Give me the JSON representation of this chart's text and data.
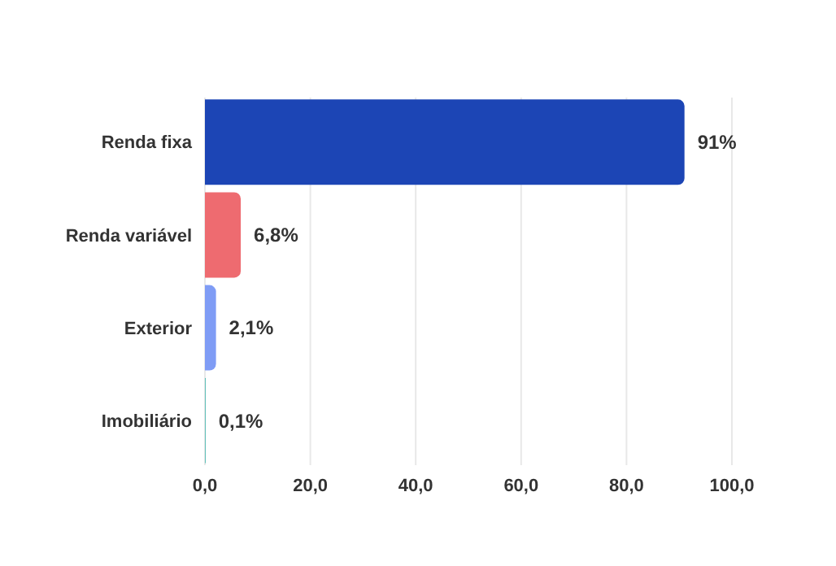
{
  "chart_data": {
    "type": "bar",
    "orientation": "horizontal",
    "categories": [
      "Renda fixa",
      "Renda variável",
      "Exterior",
      "Imobiliário"
    ],
    "values": [
      91,
      6.8,
      2.1,
      0.1
    ],
    "value_labels": [
      "91%",
      "6,8%",
      "2,1%",
      "0,1%"
    ],
    "colors": [
      "#1c45b5",
      "#ee6b70",
      "#7f9cf5",
      "#13a89e"
    ],
    "xlim": [
      0,
      100
    ],
    "xticks": [
      {
        "value": 0,
        "label": "0,0"
      },
      {
        "value": 20,
        "label": "20,0"
      },
      {
        "value": 40,
        "label": "40,0"
      },
      {
        "value": 60,
        "label": "60,0"
      },
      {
        "value": 80,
        "label": "80,0"
      },
      {
        "value": 100,
        "label": "100,0"
      }
    ],
    "grid": "x"
  }
}
